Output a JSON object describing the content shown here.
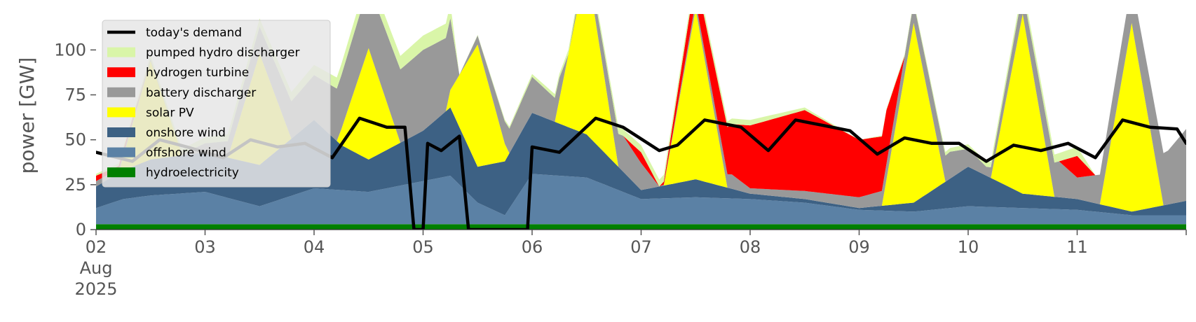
{
  "chart_data": {
    "type": "area",
    "title": "",
    "xlabel": "",
    "ylabel": "power [GW]",
    "ylim": [
      0,
      120
    ],
    "y_ticks": [
      0,
      25,
      50,
      75,
      100
    ],
    "x_range": [
      "2025-08-02",
      "2025-08-12"
    ],
    "x_ticks": [
      {
        "date": "2025-08-02",
        "label": "02",
        "label2": "Aug",
        "label3": "2025"
      },
      {
        "date": "2025-08-03",
        "label": "03"
      },
      {
        "date": "2025-08-04",
        "label": "04"
      },
      {
        "date": "2025-08-05",
        "label": "05"
      },
      {
        "date": "2025-08-06",
        "label": "06"
      },
      {
        "date": "2025-08-07",
        "label": "07"
      },
      {
        "date": "2025-08-08",
        "label": "08"
      },
      {
        "date": "2025-08-09",
        "label": "09"
      },
      {
        "date": "2025-08-10",
        "label": "10"
      },
      {
        "date": "2025-08-11",
        "label": "11"
      }
    ],
    "grid": false,
    "legend_position": "top-left",
    "stack_order": [
      "hydroelectricity",
      "offshore wind",
      "onshore wind",
      "solar PV",
      "battery discharger",
      "hydrogen turbine",
      "pumped hydro discharger"
    ],
    "series": [
      {
        "name": "hydroelectricity",
        "color": "#008000",
        "values": [
          [
            "2025-08-02 00:00",
            3
          ],
          [
            "2025-08-03 00:00",
            3
          ],
          [
            "2025-08-04 00:00",
            3
          ],
          [
            "2025-08-05 00:00",
            3
          ],
          [
            "2025-08-06 00:00",
            3
          ],
          [
            "2025-08-07 00:00",
            3
          ],
          [
            "2025-08-08 00:00",
            3
          ],
          [
            "2025-08-09 00:00",
            3
          ],
          [
            "2025-08-10 00:00",
            3
          ],
          [
            "2025-08-11 00:00",
            3
          ],
          [
            "2025-08-12 00:00",
            3
          ]
        ]
      },
      {
        "name": "offshore wind",
        "color": "#5b81a5",
        "values": [
          [
            "2025-08-02 00:00",
            9
          ],
          [
            "2025-08-02 06:00",
            14
          ],
          [
            "2025-08-02 12:00",
            16
          ],
          [
            "2025-08-03 00:00",
            18
          ],
          [
            "2025-08-03 12:00",
            10
          ],
          [
            "2025-08-04 00:00",
            20
          ],
          [
            "2025-08-04 12:00",
            18
          ],
          [
            "2025-08-05 00:00",
            24
          ],
          [
            "2025-08-05 06:00",
            27
          ],
          [
            "2025-08-05 12:00",
            12
          ],
          [
            "2025-08-05 18:00",
            5
          ],
          [
            "2025-08-06 00:00",
            28
          ],
          [
            "2025-08-06 12:00",
            26
          ],
          [
            "2025-08-07 00:00",
            14
          ],
          [
            "2025-08-07 12:00",
            15
          ],
          [
            "2025-08-08 00:00",
            14
          ],
          [
            "2025-08-08 12:00",
            12
          ],
          [
            "2025-08-09 00:00",
            8
          ],
          [
            "2025-08-09 12:00",
            7
          ],
          [
            "2025-08-10 00:00",
            10
          ],
          [
            "2025-08-10 12:00",
            9
          ],
          [
            "2025-08-11 00:00",
            8
          ],
          [
            "2025-08-11 12:00",
            5
          ],
          [
            "2025-08-12 00:00",
            5
          ]
        ]
      },
      {
        "name": "onshore wind",
        "color": "#3d6184",
        "values": [
          [
            "2025-08-02 00:00",
            12
          ],
          [
            "2025-08-02 12:00",
            20
          ],
          [
            "2025-08-03 00:00",
            22
          ],
          [
            "2025-08-03 12:00",
            23
          ],
          [
            "2025-08-04 00:00",
            38
          ],
          [
            "2025-08-04 06:00",
            25
          ],
          [
            "2025-08-04 12:00",
            18
          ],
          [
            "2025-08-05 00:00",
            28
          ],
          [
            "2025-08-05 06:00",
            38
          ],
          [
            "2025-08-05 12:00",
            20
          ],
          [
            "2025-08-05 18:00",
            30
          ],
          [
            "2025-08-06 00:00",
            34
          ],
          [
            "2025-08-06 12:00",
            24
          ],
          [
            "2025-08-07 00:00",
            5
          ],
          [
            "2025-08-07 12:00",
            10
          ],
          [
            "2025-08-08 00:00",
            3
          ],
          [
            "2025-08-08 12:00",
            2
          ],
          [
            "2025-08-09 00:00",
            1
          ],
          [
            "2025-08-09 12:00",
            5
          ],
          [
            "2025-08-10 00:00",
            22
          ],
          [
            "2025-08-10 12:00",
            8
          ],
          [
            "2025-08-11 00:00",
            6
          ],
          [
            "2025-08-11 12:00",
            2
          ],
          [
            "2025-08-12 00:00",
            8
          ]
        ]
      },
      {
        "name": "solar PV",
        "color": "#ffff00",
        "values": [
          [
            "2025-08-02 00:00",
            0
          ],
          [
            "2025-08-02 05:00",
            0
          ],
          [
            "2025-08-02 12:00",
            55
          ],
          [
            "2025-08-02 19:00",
            0
          ],
          [
            "2025-08-03 05:00",
            0
          ],
          [
            "2025-08-03 12:00",
            62
          ],
          [
            "2025-08-03 19:00",
            0
          ],
          [
            "2025-08-04 05:00",
            0
          ],
          [
            "2025-08-04 12:00",
            62
          ],
          [
            "2025-08-04 19:00",
            0
          ],
          [
            "2025-08-05 05:00",
            0
          ],
          [
            "2025-08-05 12:00",
            68
          ],
          [
            "2025-08-05 19:00",
            0
          ],
          [
            "2025-08-06 05:00",
            0
          ],
          [
            "2025-08-06 12:00",
            95
          ],
          [
            "2025-08-06 19:00",
            0
          ],
          [
            "2025-08-07 05:00",
            0
          ],
          [
            "2025-08-07 12:00",
            95
          ],
          [
            "2025-08-07 19:00",
            0
          ],
          [
            "2025-08-08 05:00",
            0
          ],
          [
            "2025-08-08 12:00",
            0
          ],
          [
            "2025-08-09 05:00",
            0
          ],
          [
            "2025-08-09 12:00",
            100
          ],
          [
            "2025-08-09 19:00",
            0
          ],
          [
            "2025-08-10 05:00",
            0
          ],
          [
            "2025-08-10 12:00",
            100
          ],
          [
            "2025-08-10 19:00",
            0
          ],
          [
            "2025-08-11 05:00",
            0
          ],
          [
            "2025-08-11 12:00",
            105
          ],
          [
            "2025-08-11 19:00",
            0
          ],
          [
            "2025-08-12 00:00",
            0
          ]
        ]
      },
      {
        "name": "battery discharger",
        "color": "#999999",
        "values": [
          [
            "2025-08-02 00:00",
            3
          ],
          [
            "2025-08-02 18:00",
            0
          ],
          [
            "2025-08-05 00:00",
            45
          ],
          [
            "2025-08-05 06:00",
            40
          ],
          [
            "2025-08-05 08:00",
            0
          ],
          [
            "2025-08-06 00:00",
            20
          ],
          [
            "2025-08-06 06:00",
            12
          ],
          [
            "2025-08-06 08:00",
            0
          ],
          [
            "2025-08-06 20:00",
            20
          ],
          [
            "2025-08-07 00:00",
            15
          ],
          [
            "2025-08-07 04:00",
            0
          ],
          [
            "2025-08-07 20:00",
            8
          ],
          [
            "2025-08-08 00:00",
            3
          ],
          [
            "2025-08-09 00:00",
            6
          ],
          [
            "2025-08-09 20:00",
            15
          ],
          [
            "2025-08-10 04:00",
            5
          ],
          [
            "2025-08-10 20:00",
            20
          ],
          [
            "2025-08-11 00:00",
            12
          ],
          [
            "2025-08-11 20:00",
            30
          ],
          [
            "2025-08-12 00:00",
            40
          ]
        ]
      },
      {
        "name": "hydrogen turbine",
        "color": "#ff0000",
        "values": [
          [
            "2025-08-02 00:00",
            3
          ],
          [
            "2025-08-02 12:00",
            0
          ],
          [
            "2025-08-06 20:00",
            0
          ],
          [
            "2025-08-07 00:00",
            6
          ],
          [
            "2025-08-07 04:00",
            0
          ],
          [
            "2025-08-08 00:00",
            35
          ],
          [
            "2025-08-08 12:00",
            45
          ],
          [
            "2025-08-09 00:00",
            32
          ],
          [
            "2025-08-09 06:00",
            30
          ],
          [
            "2025-08-09 10:00",
            0
          ],
          [
            "2025-08-10 20:00",
            0
          ],
          [
            "2025-08-11 00:00",
            12
          ],
          [
            "2025-08-11 04:00",
            0
          ]
        ]
      },
      {
        "name": "pumped hydro discharger",
        "color": "#d9f5a8",
        "values": [
          [
            "2025-08-02 00:00",
            1
          ],
          [
            "2025-08-05 00:00",
            8
          ],
          [
            "2025-08-05 06:00",
            8
          ],
          [
            "2025-08-05 08:00",
            0
          ],
          [
            "2025-08-07 00:00",
            4
          ],
          [
            "2025-08-08 00:00",
            3
          ],
          [
            "2025-08-09 00:00",
            0
          ],
          [
            "2025-08-11 00:00",
            5
          ],
          [
            "2025-08-11 04:00",
            0
          ]
        ]
      }
    ],
    "line": {
      "name": "today's demand",
      "color": "#000000",
      "values": [
        [
          "2025-08-02 00:00",
          43
        ],
        [
          "2025-08-02 08:00",
          38
        ],
        [
          "2025-08-02 14:00",
          50
        ],
        [
          "2025-08-02 20:00",
          46
        ],
        [
          "2025-08-03 04:00",
          40
        ],
        [
          "2025-08-03 10:00",
          50
        ],
        [
          "2025-08-03 16:00",
          46
        ],
        [
          "2025-08-03 22:00",
          48
        ],
        [
          "2025-08-04 04:00",
          40
        ],
        [
          "2025-08-04 10:00",
          62
        ],
        [
          "2025-08-04 16:00",
          57
        ],
        [
          "2025-08-04 20:00",
          57
        ],
        [
          "2025-08-04 22:00",
          0
        ],
        [
          "2025-08-05 00:00",
          0
        ],
        [
          "2025-08-05 01:00",
          48
        ],
        [
          "2025-08-05 04:00",
          44
        ],
        [
          "2025-08-05 08:00",
          52
        ],
        [
          "2025-08-05 10:00",
          0
        ],
        [
          "2025-08-05 23:00",
          0
        ],
        [
          "2025-08-06 00:00",
          46
        ],
        [
          "2025-08-06 06:00",
          43
        ],
        [
          "2025-08-06 14:00",
          62
        ],
        [
          "2025-08-06 20:00",
          57
        ],
        [
          "2025-08-07 04:00",
          44
        ],
        [
          "2025-08-07 08:00",
          47
        ],
        [
          "2025-08-07 14:00",
          61
        ],
        [
          "2025-08-07 22:00",
          57
        ],
        [
          "2025-08-08 04:00",
          44
        ],
        [
          "2025-08-08 10:00",
          61
        ],
        [
          "2025-08-08 16:00",
          58
        ],
        [
          "2025-08-08 22:00",
          55
        ],
        [
          "2025-08-09 04:00",
          42
        ],
        [
          "2025-08-09 10:00",
          51
        ],
        [
          "2025-08-09 16:00",
          48
        ],
        [
          "2025-08-09 22:00",
          48
        ],
        [
          "2025-08-10 04:00",
          38
        ],
        [
          "2025-08-10 10:00",
          47
        ],
        [
          "2025-08-10 16:00",
          44
        ],
        [
          "2025-08-10 22:00",
          48
        ],
        [
          "2025-08-11 04:00",
          40
        ],
        [
          "2025-08-11 10:00",
          61
        ],
        [
          "2025-08-11 16:00",
          57
        ],
        [
          "2025-08-11 22:00",
          56
        ],
        [
          "2025-08-12 00:00",
          48
        ]
      ]
    }
  },
  "legend": {
    "items": [
      {
        "label": "today's demand",
        "color": "#000000",
        "kind": "line"
      },
      {
        "label": "pumped hydro discharger",
        "color": "#d9f5a8",
        "kind": "patch"
      },
      {
        "label": "hydrogen turbine",
        "color": "#ff0000",
        "kind": "patch"
      },
      {
        "label": "battery discharger",
        "color": "#999999",
        "kind": "patch"
      },
      {
        "label": "solar PV",
        "color": "#ffff00",
        "kind": "patch"
      },
      {
        "label": "onshore wind",
        "color": "#3d6184",
        "kind": "patch"
      },
      {
        "label": "offshore wind",
        "color": "#5b81a5",
        "kind": "patch"
      },
      {
        "label": "hydroelectricity",
        "color": "#008000",
        "kind": "patch"
      }
    ]
  }
}
